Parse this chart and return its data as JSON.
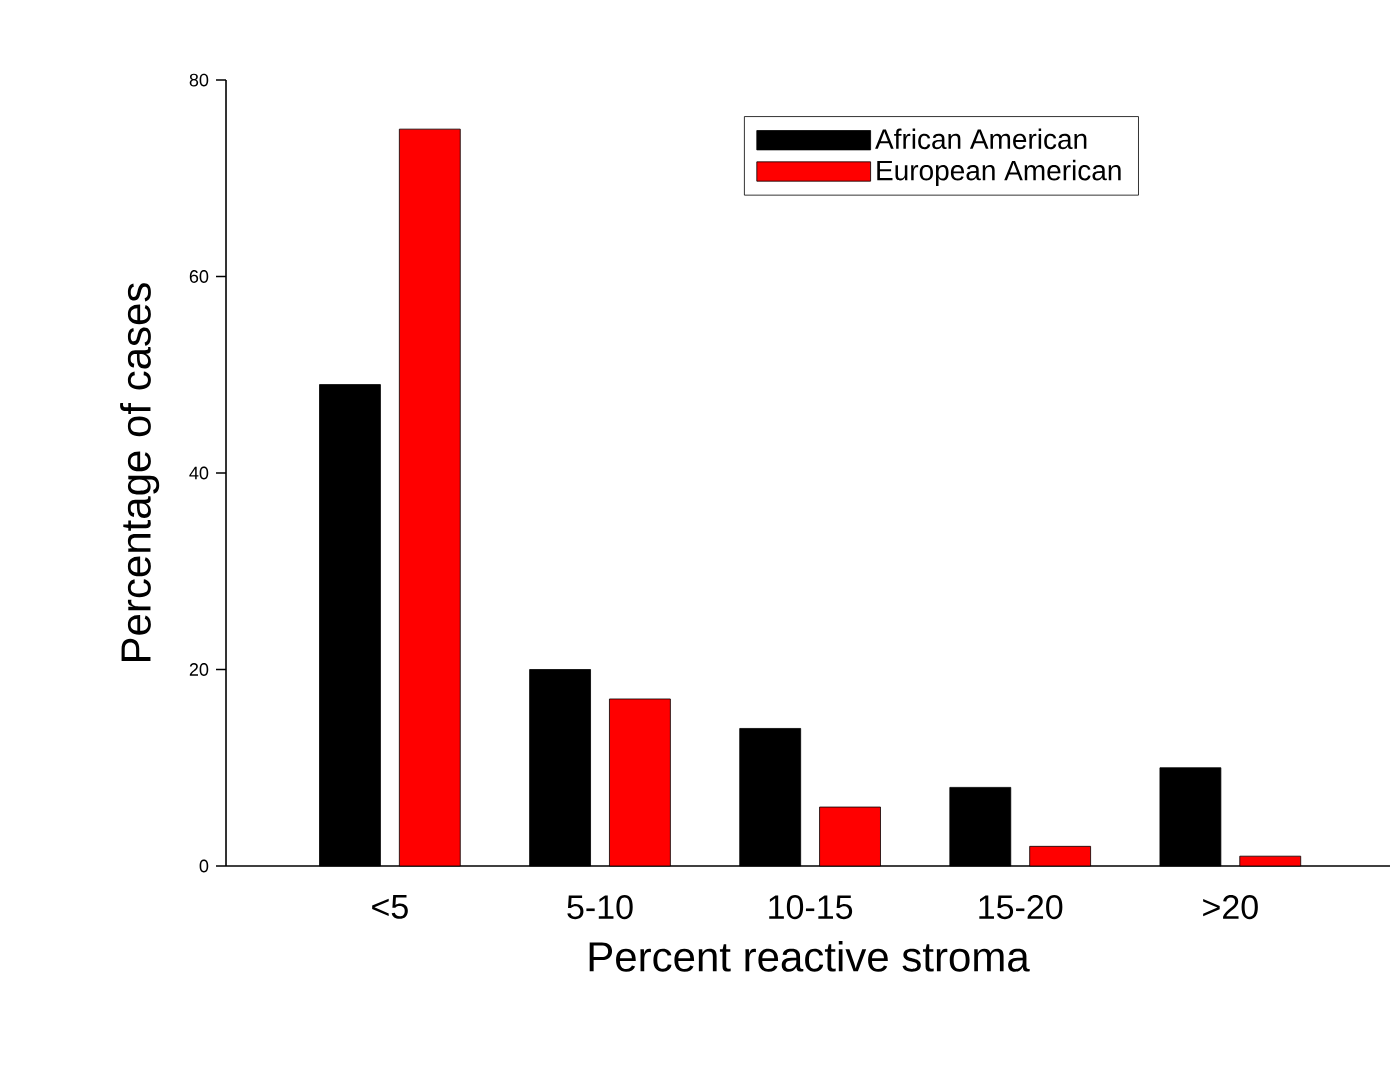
{
  "chart_data": {
    "type": "bar",
    "xlabel": "Percent reactive stroma",
    "ylabel": "Percentage of cases",
    "categories": [
      "<5",
      "5-10",
      "10-15",
      "15-20",
      ">20"
    ],
    "series": [
      {
        "name": "African American",
        "color": "#000000",
        "values": [
          49,
          20,
          14,
          8,
          10
        ]
      },
      {
        "name": "European American",
        "color": "#ff0000",
        "values": [
          75,
          17,
          6,
          2,
          1
        ]
      }
    ],
    "ylim": [
      0,
      80
    ],
    "yticks": [
      0,
      20,
      40,
      60,
      80
    ],
    "grid": false,
    "legend": "top right"
  }
}
